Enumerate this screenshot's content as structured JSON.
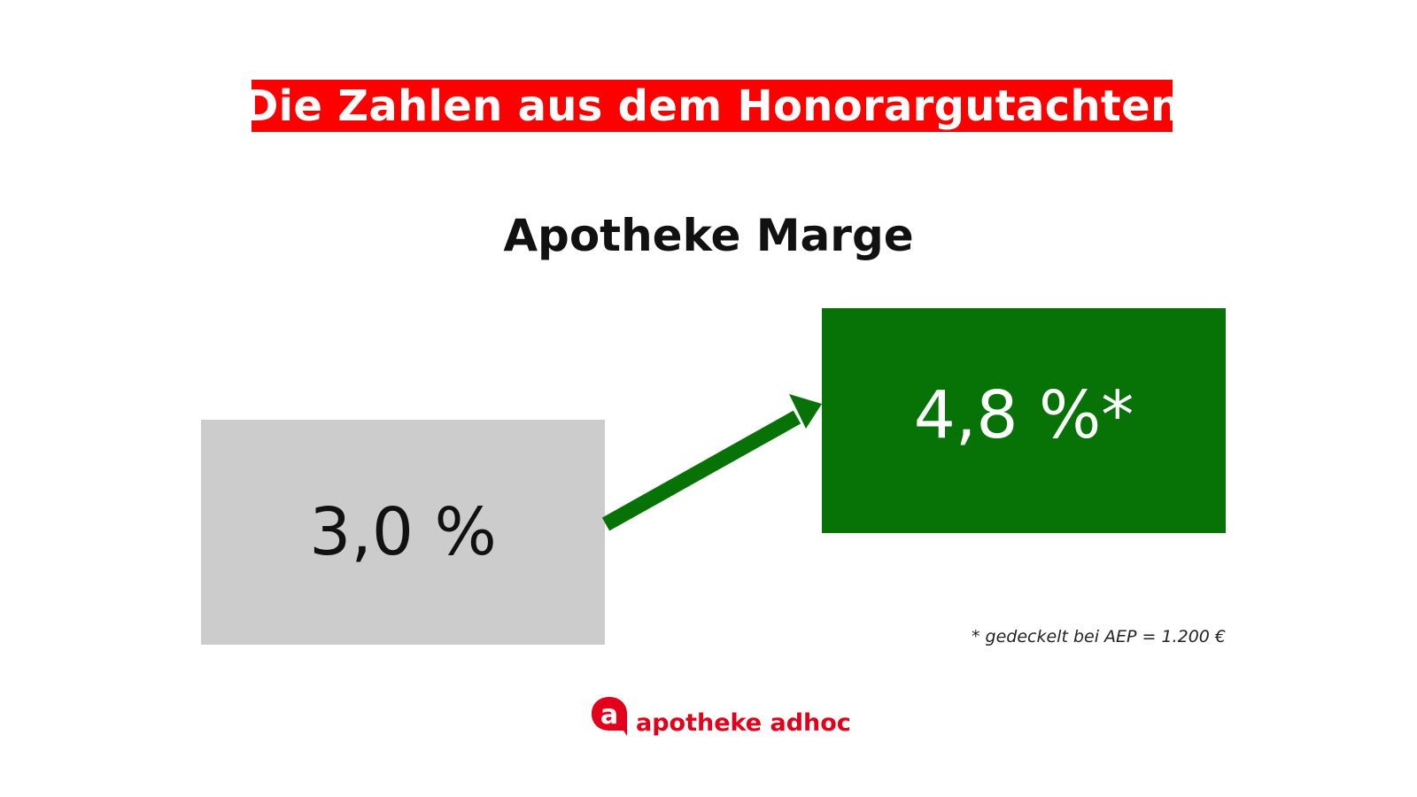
{
  "title": "Die Zahlen aus dem Honorargutachten",
  "subtitle": "Apotheke Marge",
  "old_value": {
    "label": "3,0 %",
    "value": 3.0
  },
  "new_value": {
    "label": "4,8 %*",
    "value": 4.8
  },
  "footnote": "* gedeckelt bei AEP = 1.200 €",
  "brand": {
    "logo_letter": "a",
    "name": "apotheke adhoc"
  },
  "colors": {
    "banner": "#ff0000",
    "old_box": "#cccccc",
    "new_box": "#077307",
    "arrow": "#077307",
    "brand": "#e3001b"
  },
  "icons": {
    "arrow": "arrow-up-right-icon",
    "logo": "apotheke-adhoc-logo-icon"
  }
}
